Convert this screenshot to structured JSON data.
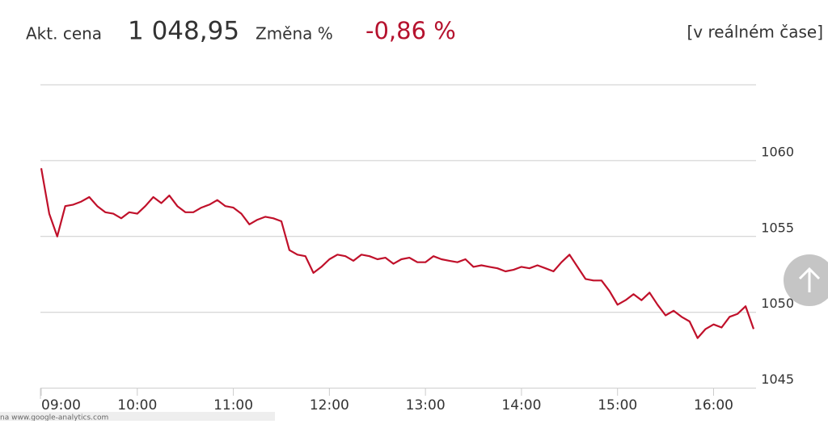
{
  "header": {
    "price_label": "Akt. cena",
    "price": "1 048,95",
    "change_label": "Změna %",
    "change": "-0,86 %",
    "realtime": "[v reálném čase]"
  },
  "status_text": "na www.google-analytics.com",
  "chart_data": {
    "type": "line",
    "x": [
      "09:00",
      null,
      null,
      null,
      null,
      null,
      null,
      null,
      null,
      null,
      null,
      null,
      "10:00",
      null,
      null,
      null,
      null,
      null,
      null,
      null,
      null,
      null,
      null,
      null,
      "11:00",
      null,
      null,
      null,
      null,
      null,
      null,
      null,
      null,
      null,
      null,
      null,
      "12:00",
      null,
      null,
      null,
      null,
      null,
      null,
      null,
      null,
      null,
      null,
      null,
      "13:00",
      null,
      null,
      null,
      null,
      null,
      null,
      null,
      null,
      null,
      null,
      null,
      "14:00",
      null,
      null,
      null,
      null,
      null,
      null,
      null,
      null,
      null,
      null,
      null,
      "15:00",
      null,
      null,
      null,
      null,
      null,
      null,
      null,
      null,
      null,
      null,
      null,
      "16:00",
      null,
      null,
      null,
      null,
      null
    ],
    "series": [
      {
        "color": "#c0102a",
        "values": [
          1059.5,
          1056.5,
          1055.0,
          1057.0,
          1057.1,
          1057.3,
          1057.6,
          1057.0,
          1056.6,
          1056.5,
          1056.2,
          1056.6,
          1056.5,
          1057.0,
          1057.6,
          1057.2,
          1057.7,
          1057.0,
          1056.6,
          1056.6,
          1056.9,
          1057.1,
          1057.4,
          1057.0,
          1056.9,
          1056.5,
          1055.8,
          1056.1,
          1056.3,
          1056.2,
          1056.0,
          1054.1,
          1053.8,
          1053.7,
          1052.6,
          1053.0,
          1053.5,
          1053.8,
          1053.7,
          1053.4,
          1053.8,
          1053.7,
          1053.5,
          1053.6,
          1053.2,
          1053.5,
          1053.6,
          1053.3,
          1053.3,
          1053.7,
          1053.5,
          1053.4,
          1053.3,
          1053.5,
          1053.0,
          1053.1,
          1053.0,
          1052.9,
          1052.7,
          1052.8,
          1053.0,
          1052.9,
          1053.1,
          1052.9,
          1052.7,
          1053.3,
          1053.8,
          1053.0,
          1052.2,
          1052.1,
          1052.1,
          1051.4,
          1050.5,
          1050.8,
          1051.2,
          1050.8,
          1051.3,
          1050.5,
          1049.8,
          1050.1,
          1049.7,
          1049.4,
          1048.3,
          1048.9,
          1049.2,
          1049.0,
          1049.7,
          1049.9,
          1050.4,
          1048.9
        ]
      }
    ],
    "ylim": [
      1044.5,
      1065
    ],
    "yticks": [
      1045,
      1050,
      1055,
      1060
    ],
    "grid": true
  }
}
